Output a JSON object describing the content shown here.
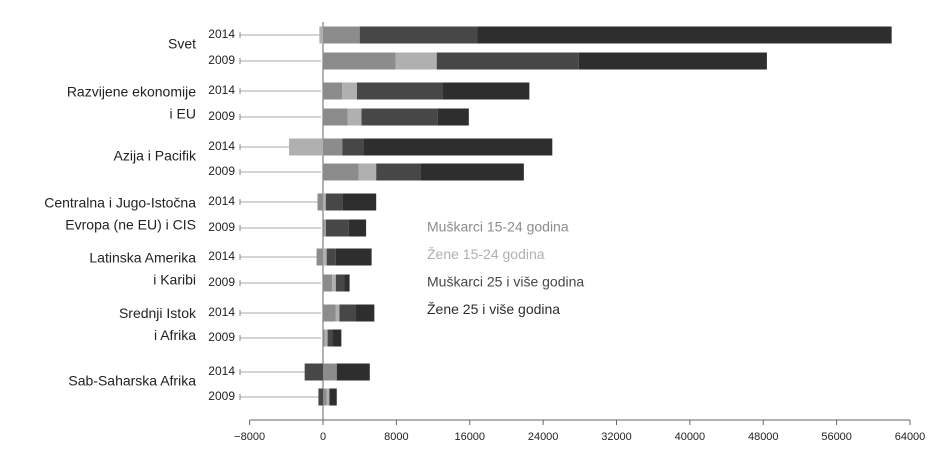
{
  "chart_data": {
    "type": "stacked-barh",
    "groups": [
      [
        "Svet"
      ],
      [
        "Razvijene ekonomije",
        "i EU"
      ],
      [
        "Azija i Pacifik"
      ],
      [
        "Centralna i Jugo-Istočna",
        "Evropa (ne EU) i CIS"
      ],
      [
        "Latinska Amerika",
        "i Karibi"
      ],
      [
        "Srednji Istok",
        "i Afrika"
      ],
      [
        "Sab-Saharska Afrika"
      ]
    ],
    "categories": [
      "2014",
      "2009",
      "2014",
      "2009",
      "2014",
      "2009",
      "2014",
      "2009",
      "2014",
      "2009",
      "2014",
      "2009",
      "2014",
      "2009"
    ],
    "series": [
      {
        "name": "Muškarci 15-24 godina",
        "color": "#8c8c8c",
        "values": [
          4000,
          7900,
          2100,
          2700,
          2100,
          3900,
          -600,
          200,
          -700,
          1000,
          1400,
          200,
          1500,
          400
        ]
      },
      {
        "name": "Žene 15-24 godina",
        "color": "#b0b0b0",
        "values": [
          -400,
          4500,
          1600,
          1500,
          -3700,
          1900,
          300,
          100,
          400,
          400,
          400,
          300,
          0,
          300
        ]
      },
      {
        "name": "Muškarci 25 i više godina",
        "color": "#474747",
        "values": [
          12800,
          15500,
          9300,
          8300,
          2300,
          4800,
          1800,
          2500,
          1000,
          900,
          1800,
          500,
          -2000,
          -500
        ]
      },
      {
        "name": "Žene 25 i više godina",
        "color": "#2e2e2e",
        "values": [
          45200,
          20500,
          9500,
          3400,
          20600,
          11300,
          3700,
          1900,
          3900,
          600,
          2000,
          1000,
          3600,
          800
        ]
      }
    ],
    "xlim": [
      -8000,
      64000
    ],
    "xticks": [
      {
        "value": -8000,
        "label": "−8000"
      },
      0,
      8000,
      16000,
      24000,
      32000,
      40000,
      48000,
      56000,
      64000
    ]
  }
}
